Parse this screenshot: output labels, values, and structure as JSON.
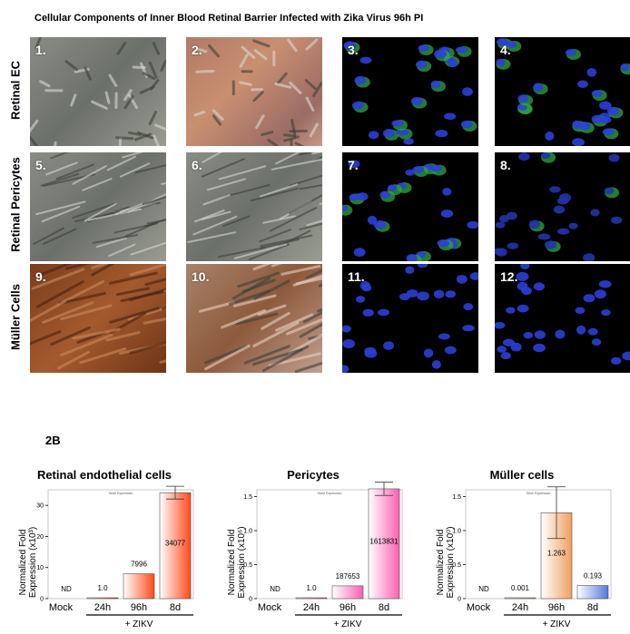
{
  "figure_title": "Cellular Components of Inner Blood Retinal Barrier Infected with Zika Virus 96h PI",
  "row_labels": [
    "Retinal EC",
    "Retinal Pericytes",
    "Müller Cells"
  ],
  "panel_numbers": [
    "1.",
    "2.",
    "3.",
    "4.",
    "5.",
    "6.",
    "7.",
    "8.",
    "9.",
    "10.",
    "11.",
    "12."
  ],
  "section_label": "2B",
  "colors": {
    "endothelial_bar": "#ff4a1a",
    "pericyte_bar": "#ff5fb0",
    "muller_bar": "#f0a060",
    "muller_bar_8d": "#5577dd"
  },
  "chart_data": [
    {
      "type": "bar",
      "title": "Retinal endothelial cells",
      "ylabel": "Normalized Fold Expression (x10³)",
      "subtitle": "Gene Expression",
      "categories": [
        "Mock",
        "24h",
        "96h",
        "8d"
      ],
      "group_label": "+ ZIKV",
      "values": [
        0,
        0.001,
        7.996,
        34.077
      ],
      "labels": [
        "ND",
        "1.0",
        "7996",
        "34077"
      ],
      "ylim": [
        0,
        35
      ],
      "yticks": [
        "0",
        "10",
        "20",
        "30"
      ]
    },
    {
      "type": "bar",
      "title": "Pericytes",
      "ylabel": "Normalized Fold Expression (x10⁶)",
      "subtitle": "Gene Expression",
      "categories": [
        "Mock",
        "24h",
        "96h",
        "8d"
      ],
      "group_label": "+ ZIKV",
      "values": [
        0,
        1e-06,
        0.187653,
        1.613831
      ],
      "labels": [
        "ND",
        "1.0",
        "187653",
        "1613831"
      ],
      "ylim": [
        0,
        1.6
      ],
      "yticks": [
        "0",
        "0.5",
        "1.0",
        "1.5"
      ]
    },
    {
      "type": "bar",
      "title": "Müller cells",
      "ylabel": "Normalized Fold Expression (x10⁰)",
      "subtitle": "Gene Expression",
      "categories": [
        "Mock",
        "24h",
        "96h",
        "8d"
      ],
      "group_label": "+ ZIKV",
      "values": [
        0,
        0.001,
        1.263,
        0.193
      ],
      "labels": [
        "ND",
        "0.001",
        "1.263",
        "0.193"
      ],
      "ylim": [
        0,
        1.6
      ],
      "yticks": [
        "0",
        "0.5",
        "1.0",
        "1.5"
      ]
    }
  ]
}
